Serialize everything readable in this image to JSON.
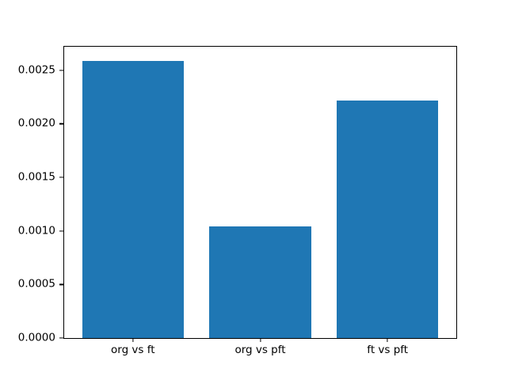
{
  "figure": {
    "background": "#ffffff"
  },
  "chart_data": {
    "type": "bar",
    "title": "",
    "xlabel": "",
    "ylabel": "",
    "categories": [
      "org vs ft",
      "org vs pft",
      "ft vs pft"
    ],
    "values": [
      0.00259,
      0.00104,
      0.00222
    ],
    "bar_color": "#1f77b4",
    "bar_width": 0.8,
    "xlim": [
      -0.54,
      2.54
    ],
    "ylim": [
      0,
      0.00272
    ],
    "yticks": [
      {
        "value": 0.0,
        "label": "0.0000"
      },
      {
        "value": 0.0005,
        "label": "0.0005"
      },
      {
        "value": 0.001,
        "label": "0.0010"
      },
      {
        "value": 0.0015,
        "label": "0.0015"
      },
      {
        "value": 0.002,
        "label": "0.0020"
      },
      {
        "value": 0.0025,
        "label": "0.0025"
      }
    ],
    "grid": false,
    "legend": null
  }
}
